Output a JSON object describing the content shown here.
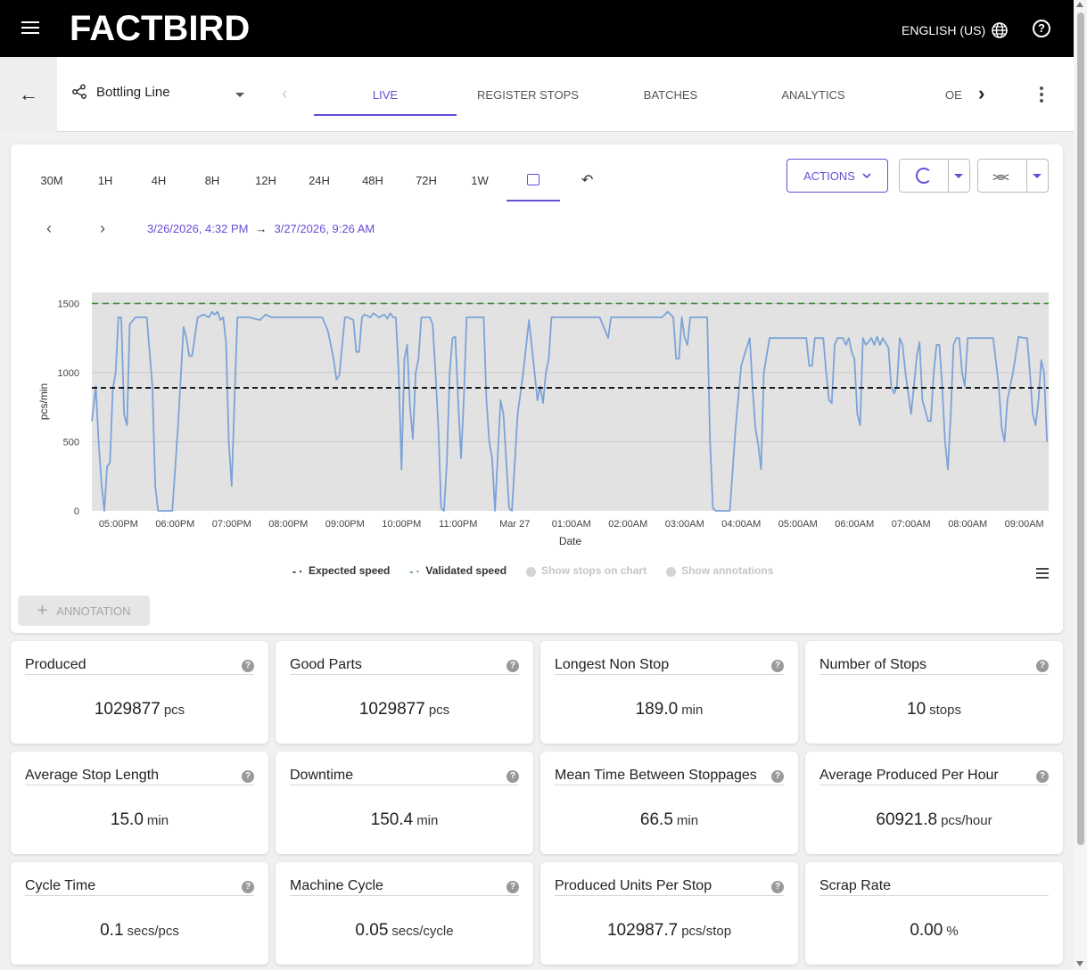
{
  "header": {
    "logo": "FACTBIRD",
    "language": "ENGLISH (US)",
    "help": "?"
  },
  "subnav": {
    "line_name": "Bottling Line",
    "tabs": [
      "LIVE",
      "REGISTER STOPS",
      "BATCHES",
      "ANALYTICS",
      "OE"
    ],
    "active_tab": "LIVE"
  },
  "chart_toolbar": {
    "ranges": [
      "30M",
      "1H",
      "4H",
      "8H",
      "12H",
      "24H",
      "48H",
      "72H",
      "1W"
    ],
    "actions_label": "ACTIONS",
    "date_from": "3/26/2026, 4:32 PM",
    "date_to": "3/27/2026, 9:26 AM",
    "arrow": "→"
  },
  "chart_data": {
    "type": "line",
    "xlabel": "Date",
    "ylabel": "pcs/min",
    "ylim": [
      0,
      1580
    ],
    "yticks": [
      0,
      500,
      1000,
      1500
    ],
    "xtick_labels": [
      "05:00PM",
      "06:00PM",
      "07:00PM",
      "08:00PM",
      "09:00PM",
      "10:00PM",
      "11:00PM",
      "Mar 27",
      "01:00AM",
      "02:00AM",
      "03:00AM",
      "04:00AM",
      "05:00AM",
      "06:00AM",
      "07:00AM",
      "08:00AM",
      "09:00AM"
    ],
    "xlim_hours": [
      16.53,
      33.43
    ],
    "expected_speed": 890,
    "validated_speed": 1500,
    "grid": true,
    "legend_position": "bottom",
    "series": [
      {
        "values": [
          [
            16.53,
            650
          ],
          [
            16.6,
            900
          ],
          [
            16.65,
            500
          ],
          [
            16.7,
            200
          ],
          [
            16.75,
            0
          ],
          [
            16.8,
            320
          ],
          [
            16.85,
            350
          ],
          [
            16.9,
            880
          ],
          [
            16.95,
            1000
          ],
          [
            17.0,
            1400
          ],
          [
            17.05,
            1400
          ],
          [
            17.1,
            700
          ],
          [
            17.15,
            620
          ],
          [
            17.2,
            1350
          ],
          [
            17.3,
            1400
          ],
          [
            17.4,
            1400
          ],
          [
            17.5,
            1400
          ],
          [
            17.6,
            900
          ],
          [
            17.65,
            180
          ],
          [
            17.7,
            0
          ],
          [
            17.8,
            0
          ],
          [
            17.9,
            0
          ],
          [
            17.95,
            0
          ],
          [
            18.05,
            600
          ],
          [
            18.15,
            1330
          ],
          [
            18.2,
            1250
          ],
          [
            18.25,
            1120
          ],
          [
            18.3,
            1120
          ],
          [
            18.4,
            1400
          ],
          [
            18.5,
            1420
          ],
          [
            18.6,
            1400
          ],
          [
            18.65,
            1440
          ],
          [
            18.7,
            1420
          ],
          [
            18.75,
            1440
          ],
          [
            18.8,
            1380
          ],
          [
            18.85,
            1400
          ],
          [
            18.9,
            1220
          ],
          [
            18.95,
            500
          ],
          [
            19.0,
            180
          ],
          [
            19.05,
            800
          ],
          [
            19.1,
            1400
          ],
          [
            19.3,
            1400
          ],
          [
            19.5,
            1380
          ],
          [
            19.55,
            1400
          ],
          [
            19.6,
            1420
          ],
          [
            19.7,
            1400
          ],
          [
            20.0,
            1400
          ],
          [
            20.3,
            1400
          ],
          [
            20.6,
            1400
          ],
          [
            20.7,
            1300
          ],
          [
            20.8,
            1100
          ],
          [
            20.85,
            950
          ],
          [
            20.9,
            980
          ],
          [
            21.0,
            1400
          ],
          [
            21.05,
            1400
          ],
          [
            21.15,
            1380
          ],
          [
            21.2,
            1150
          ],
          [
            21.25,
            1150
          ],
          [
            21.3,
            1400
          ],
          [
            21.35,
            1420
          ],
          [
            21.45,
            1400
          ],
          [
            21.5,
            1430
          ],
          [
            21.6,
            1400
          ],
          [
            21.7,
            1420
          ],
          [
            21.75,
            1390
          ],
          [
            21.8,
            1430
          ],
          [
            21.85,
            1400
          ],
          [
            21.9,
            1400
          ],
          [
            21.95,
            1000
          ],
          [
            22.0,
            300
          ],
          [
            22.05,
            1100
          ],
          [
            22.1,
            1200
          ],
          [
            22.15,
            750
          ],
          [
            22.2,
            520
          ],
          [
            22.25,
            1000
          ],
          [
            22.3,
            1100
          ],
          [
            22.35,
            1400
          ],
          [
            22.4,
            1400
          ],
          [
            22.45,
            1400
          ],
          [
            22.5,
            1400
          ],
          [
            22.55,
            1350
          ],
          [
            22.6,
            1000
          ],
          [
            22.65,
            600
          ],
          [
            22.7,
            20
          ],
          [
            22.75,
            0
          ],
          [
            22.8,
            350
          ],
          [
            22.85,
            1000
          ],
          [
            22.9,
            1250
          ],
          [
            22.95,
            1260
          ],
          [
            23.0,
            800
          ],
          [
            23.05,
            380
          ],
          [
            23.1,
            800
          ],
          [
            23.15,
            1400
          ],
          [
            23.2,
            1400
          ],
          [
            23.35,
            1400
          ],
          [
            23.45,
            1400
          ],
          [
            23.5,
            800
          ],
          [
            23.55,
            500
          ],
          [
            23.6,
            380
          ],
          [
            23.65,
            0
          ],
          [
            23.7,
            400
          ],
          [
            23.75,
            800
          ],
          [
            23.8,
            700
          ],
          [
            23.9,
            20
          ],
          [
            23.95,
            0
          ],
          [
            24.05,
            700
          ],
          [
            24.15,
            1000
          ],
          [
            24.25,
            1380
          ],
          [
            24.35,
            1000
          ],
          [
            24.4,
            800
          ],
          [
            24.45,
            900
          ],
          [
            24.5,
            780
          ],
          [
            24.55,
            1000
          ],
          [
            24.6,
            1100
          ],
          [
            24.65,
            1400
          ],
          [
            24.7,
            1400
          ],
          [
            24.8,
            1400
          ],
          [
            24.85,
            1400
          ],
          [
            24.95,
            1400
          ],
          [
            25.0,
            1400
          ],
          [
            25.05,
            1400
          ],
          [
            25.15,
            1400
          ],
          [
            25.35,
            1400
          ],
          [
            25.5,
            1400
          ],
          [
            25.6,
            1300
          ],
          [
            25.65,
            1250
          ],
          [
            25.7,
            1400
          ],
          [
            25.8,
            1400
          ],
          [
            26.0,
            1400
          ],
          [
            26.2,
            1400
          ],
          [
            26.3,
            1400
          ],
          [
            26.4,
            1400
          ],
          [
            26.5,
            1400
          ],
          [
            26.6,
            1400
          ],
          [
            26.7,
            1440
          ],
          [
            26.8,
            1400
          ],
          [
            26.85,
            1100
          ],
          [
            26.9,
            1100
          ],
          [
            26.95,
            1400
          ],
          [
            27.0,
            1250
          ],
          [
            27.05,
            1200
          ],
          [
            27.1,
            1400
          ],
          [
            27.15,
            1400
          ],
          [
            27.25,
            1400
          ],
          [
            27.3,
            1400
          ],
          [
            27.4,
            1400
          ],
          [
            27.45,
            500
          ],
          [
            27.5,
            20
          ],
          [
            27.55,
            0
          ],
          [
            27.7,
            0
          ],
          [
            27.8,
            0
          ],
          [
            27.9,
            600
          ],
          [
            28.0,
            1050
          ],
          [
            28.05,
            1120
          ],
          [
            28.15,
            1250
          ],
          [
            28.2,
            900
          ],
          [
            28.25,
            600
          ],
          [
            28.3,
            480
          ],
          [
            28.35,
            300
          ],
          [
            28.4,
            1000
          ],
          [
            28.5,
            1250
          ],
          [
            28.6,
            1250
          ],
          [
            28.7,
            1250
          ],
          [
            28.8,
            1250
          ],
          [
            28.9,
            1250
          ],
          [
            29.0,
            1250
          ],
          [
            29.1,
            1250
          ],
          [
            29.15,
            1250
          ],
          [
            29.2,
            1050
          ],
          [
            29.25,
            1050
          ],
          [
            29.3,
            1250
          ],
          [
            29.45,
            1250
          ],
          [
            29.5,
            1000
          ],
          [
            29.55,
            800
          ],
          [
            29.6,
            780
          ],
          [
            29.65,
            1200
          ],
          [
            29.7,
            1250
          ],
          [
            29.8,
            1250
          ],
          [
            29.85,
            1200
          ],
          [
            29.9,
            1250
          ],
          [
            29.95,
            1150
          ],
          [
            30.0,
            1100
          ],
          [
            30.05,
            700
          ],
          [
            30.1,
            620
          ],
          [
            30.15,
            1250
          ],
          [
            30.2,
            1200
          ],
          [
            30.3,
            1250
          ],
          [
            30.35,
            1200
          ],
          [
            30.4,
            1260
          ],
          [
            30.45,
            1200
          ],
          [
            30.5,
            1250
          ],
          [
            30.6,
            1180
          ],
          [
            30.65,
            900
          ],
          [
            30.7,
            850
          ],
          [
            30.75,
            900
          ],
          [
            30.8,
            1250
          ],
          [
            30.85,
            1200
          ],
          [
            30.9,
            1000
          ],
          [
            31.0,
            700
          ],
          [
            31.05,
            900
          ],
          [
            31.1,
            1120
          ],
          [
            31.15,
            1220
          ],
          [
            31.2,
            800
          ],
          [
            31.3,
            650
          ],
          [
            31.35,
            650
          ],
          [
            31.4,
            1000
          ],
          [
            31.45,
            1200
          ],
          [
            31.5,
            1200
          ],
          [
            31.55,
            900
          ],
          [
            31.6,
            500
          ],
          [
            31.65,
            300
          ],
          [
            31.7,
            700
          ],
          [
            31.75,
            1200
          ],
          [
            31.8,
            1250
          ],
          [
            31.85,
            1250
          ],
          [
            31.9,
            1000
          ],
          [
            31.95,
            900
          ],
          [
            32.0,
            1250
          ],
          [
            32.1,
            1250
          ],
          [
            32.2,
            1250
          ],
          [
            32.3,
            1250
          ],
          [
            32.4,
            1250
          ],
          [
            32.45,
            1250
          ],
          [
            32.55,
            900
          ],
          [
            32.6,
            600
          ],
          [
            32.65,
            500
          ],
          [
            32.7,
            800
          ],
          [
            32.8,
            1000
          ],
          [
            32.9,
            1260
          ],
          [
            33.0,
            1250
          ],
          [
            33.05,
            1250
          ],
          [
            33.1,
            1000
          ],
          [
            33.15,
            700
          ],
          [
            33.2,
            620
          ],
          [
            33.25,
            800
          ],
          [
            33.3,
            1090
          ],
          [
            33.35,
            1000
          ],
          [
            33.4,
            500
          ],
          [
            33.45,
            0
          ],
          [
            33.5,
            0
          ],
          [
            33.8,
            0
          ]
        ]
      }
    ]
  },
  "legend": {
    "expected": "Expected speed",
    "validated": "Validated speed",
    "show_stops": "Show stops on chart",
    "show_annotations": "Show annotations"
  },
  "annotation_label": "ANNOTATION",
  "metrics": [
    {
      "title": "Produced",
      "value": "1029877",
      "unit": "pcs",
      "help": true
    },
    {
      "title": "Good Parts",
      "value": "1029877",
      "unit": "pcs",
      "help": true
    },
    {
      "title": "Longest Non Stop",
      "value": "189.0",
      "unit": "min",
      "help": true
    },
    {
      "title": "Number of Stops",
      "value": "10",
      "unit": "stops",
      "help": true
    },
    {
      "title": "Average Stop Length",
      "value": "15.0",
      "unit": "min",
      "help": true
    },
    {
      "title": "Downtime",
      "value": "150.4",
      "unit": "min",
      "help": true
    },
    {
      "title": "Mean Time Between Stoppages",
      "value": "66.5",
      "unit": "min",
      "help": true
    },
    {
      "title": "Average Produced Per Hour",
      "value": "60921.8",
      "unit": "pcs/hour",
      "help": true
    },
    {
      "title": "Cycle Time",
      "value": "0.1",
      "unit": "secs/pcs",
      "help": true
    },
    {
      "title": "Machine Cycle",
      "value": "0.05",
      "unit": "secs/cycle",
      "help": true
    },
    {
      "title": "Produced Units Per Stop",
      "value": "102987.7",
      "unit": "pcs/stop",
      "help": true
    },
    {
      "title": "Scrap Rate",
      "value": "0.00",
      "unit": "%",
      "help": false
    }
  ],
  "colors": {
    "accent": "#6a4bd6",
    "line": "#7ba3d8",
    "expected": "#000000",
    "validated": "#3a8a35"
  }
}
